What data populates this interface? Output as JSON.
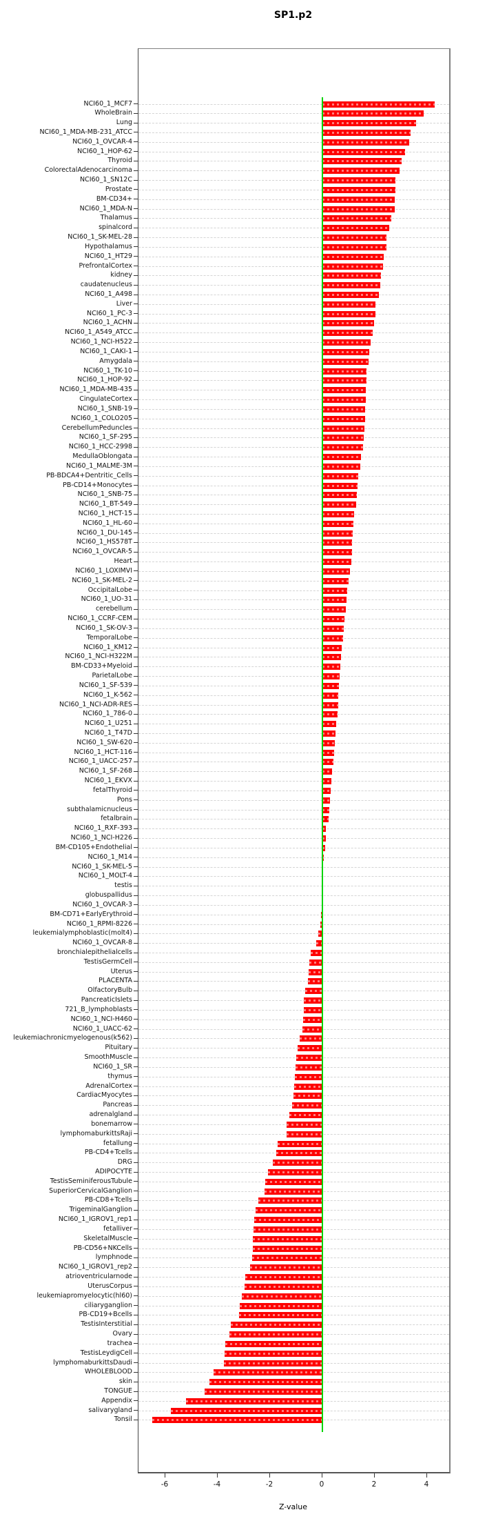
{
  "title": "SP1.p2",
  "chart_data": {
    "type": "bar",
    "orientation": "horizontal",
    "title": "SP1.p2",
    "xlabel": "Z-value",
    "ylabel": "",
    "xlim": [
      -7.0,
      4.85
    ],
    "xticks": [
      -6,
      -4,
      -2,
      0,
      2,
      4
    ],
    "grid": "horizontal-dashed",
    "legend": "none",
    "zero_line": 0,
    "colors": {
      "bar": "#fe0000",
      "zero_line": "#00d400",
      "gridline": "#d4d4d4",
      "box_border": "#808080",
      "text": "#111111"
    },
    "categories": [
      "NCI60_1_MCF7",
      "WholeBrain",
      "Lung",
      "NCI60_1_MDA-MB-231_ATCC",
      "NCI60_1_OVCAR-4",
      "NCI60_1_HOP-62",
      "Thyroid",
      "ColorectalAdenocarcinoma",
      "NCI60_1_SN12C",
      "Prostate",
      "BM-CD34+",
      "NCI60_1_MDA-N",
      "Thalamus",
      "spinalcord",
      "NCI60_1_SK-MEL-28",
      "Hypothalamus",
      "NCI60_1_HT29",
      "PrefrontalCortex",
      "kidney",
      "caudatenucleus",
      "NCI60_1_A498",
      "Liver",
      "NCI60_1_PC-3",
      "NCI60_1_ACHN",
      "NCI60_1_A549_ATCC",
      "NCI60_1_NCI-H522",
      "NCI60_1_CAKI-1",
      "Amygdala",
      "NCI60_1_TK-10",
      "NCI60_1_HOP-92",
      "NCI60_1_MDA-MB-435",
      "CingulateCortex",
      "NCI60_1_SNB-19",
      "NCI60_1_COLO205",
      "CerebellumPeduncles",
      "NCI60_1_SF-295",
      "NCI60_1_HCC-2998",
      "MedullaOblongata",
      "NCI60_1_MALME-3M",
      "PB-BDCA4+Dentritic_Cells",
      "PB-CD14+Monocytes",
      "NCI60_1_SNB-75",
      "NCI60_1_BT-549",
      "NCI60_1_HCT-15",
      "NCI60_1_HL-60",
      "NCI60_1_DU-145",
      "NCI60_1_HS578T",
      "NCI60_1_OVCAR-5",
      "Heart",
      "NCI60_1_LOXIMVI",
      "NCI60_1_SK-MEL-2",
      "OccipitalLobe",
      "NCI60_1_UO-31",
      "cerebellum",
      "NCI60_1_CCRF-CEM",
      "NCI60_1_SK-OV-3",
      "TemporalLobe",
      "NCI60_1_KM12",
      "NCI60_1_NCI-H322M",
      "BM-CD33+Myeloid",
      "ParietalLobe",
      "NCI60_1_SF-539",
      "NCI60_1_K-562",
      "NCI60_1_NCI-ADR-RES",
      "NCI60_1_786-0",
      "NCI60_1_U251",
      "NCI60_1_T47D",
      "NCI60_1_SW-620",
      "NCI60_1_HCT-116",
      "NCI60_1_UACC-257",
      "NCI60_1_SF-268",
      "NCI60_1_EKVX",
      "fetalThyroid",
      "Pons",
      "subthalamicnucleus",
      "fetalbrain",
      "NCI60_1_RXF-393",
      "NCI60_1_NCI-H226",
      "BM-CD105+Endothelial",
      "NCI60_1_M14",
      "NCI60_1_SK-MEL-5",
      "NCI60_1_MOLT-4",
      "testis",
      "globuspallidus",
      "NCI60_1_OVCAR-3",
      "BM-CD71+EarlyErythroid",
      "NCI60_1_RPMI-8226",
      "leukemialymphoblastic(molt4)",
      "NCI60_1_OVCAR-8",
      "bronchialepithelialcells",
      "TestisGermCell",
      "Uterus",
      "PLACENTA",
      "OlfactoryBulb",
      "PancreaticIslets",
      "721_B_lymphoblasts",
      "NCI60_1_NCI-H460",
      "NCI60_1_UACC-62",
      "leukemiachronicmyelogenous(k562)",
      "Pituitary",
      "SmoothMuscle",
      "NCI60_1_SR",
      "thymus",
      "AdrenalCortex",
      "CardiacMyocytes",
      "Pancreas",
      "adrenalgland",
      "bonemarrow",
      "lymphomaburkittsRaji",
      "fetallung",
      "PB-CD4+Tcells",
      "DRG",
      "ADIPOCYTE",
      "TestisSeminiferousTubule",
      "SuperiorCervicalGanglion",
      "PB-CD8+Tcells",
      "TrigeminalGanglion",
      "NCI60_1_IGROV1_rep1",
      "fetalliver",
      "SkeletalMuscle",
      "PB-CD56+NKCells",
      "lymphnode",
      "NCI60_1_IGROV1_rep2",
      "atrioventricularnode",
      "UterusCorpus",
      "leukemiapromyelocytic(hl60)",
      "ciliaryganglion",
      "PB-CD19+Bcells",
      "TestisInterstitial",
      "Ovary",
      "trachea",
      "TestisLeydigCell",
      "lymphomaburkittsDaudi",
      "WHOLEBLOOD",
      "skin",
      "TONGUE",
      "Appendix",
      "salivarygland",
      "Tonsil"
    ],
    "values": [
      4.3,
      3.88,
      3.57,
      3.38,
      3.31,
      3.15,
      3.03,
      2.94,
      2.8,
      2.78,
      2.77,
      2.76,
      2.62,
      2.54,
      2.46,
      2.45,
      2.34,
      2.31,
      2.23,
      2.21,
      2.15,
      2.03,
      2.02,
      1.97,
      1.93,
      1.83,
      1.8,
      1.77,
      1.69,
      1.68,
      1.67,
      1.65,
      1.64,
      1.63,
      1.61,
      1.59,
      1.56,
      1.47,
      1.44,
      1.38,
      1.33,
      1.31,
      1.29,
      1.21,
      1.18,
      1.15,
      1.14,
      1.13,
      1.11,
      1.05,
      0.99,
      0.94,
      0.93,
      0.89,
      0.84,
      0.82,
      0.79,
      0.73,
      0.72,
      0.69,
      0.65,
      0.63,
      0.61,
      0.6,
      0.57,
      0.52,
      0.51,
      0.47,
      0.45,
      0.42,
      0.36,
      0.34,
      0.32,
      0.29,
      0.26,
      0.24,
      0.13,
      0.12,
      0.11,
      0.04,
      0.03,
      0.02,
      0.01,
      -0.01,
      -0.02,
      -0.05,
      -0.07,
      -0.16,
      -0.25,
      -0.45,
      -0.49,
      -0.52,
      -0.55,
      -0.67,
      -0.7,
      -0.72,
      -0.73,
      -0.76,
      -0.88,
      -0.94,
      -0.99,
      -1.03,
      -1.06,
      -1.08,
      -1.1,
      -1.17,
      -1.26,
      -1.36,
      -1.38,
      -1.71,
      -1.77,
      -1.9,
      -2.07,
      -2.19,
      -2.2,
      -2.44,
      -2.56,
      -2.6,
      -2.64,
      -2.65,
      -2.67,
      -2.68,
      -2.77,
      -2.96,
      -2.98,
      -3.08,
      -3.17,
      -3.19,
      -3.51,
      -3.56,
      -3.72,
      -3.73,
      -3.77,
      -4.15,
      -4.31,
      -4.51,
      -5.21,
      -5.8,
      -6.51
    ]
  }
}
